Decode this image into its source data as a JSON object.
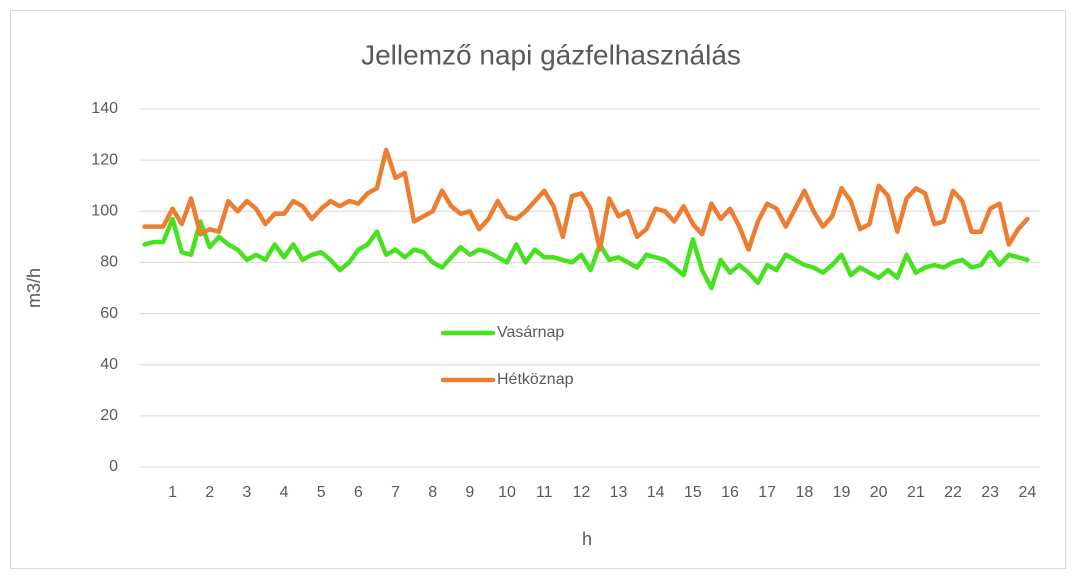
{
  "chart_data": {
    "type": "line",
    "title": "Jellemző napi gázfelhasználás",
    "x_label": "h",
    "y_label": "m3/h",
    "categories": [
      null,
      null,
      null,
      "1",
      null,
      null,
      null,
      "2",
      null,
      null,
      null,
      "3",
      null,
      null,
      null,
      "4",
      null,
      null,
      null,
      "5",
      null,
      null,
      null,
      "6",
      null,
      null,
      null,
      "7",
      null,
      null,
      null,
      "8",
      null,
      null,
      null,
      "9",
      null,
      null,
      null,
      "10",
      null,
      null,
      null,
      "11",
      null,
      null,
      null,
      "12",
      null,
      null,
      null,
      "13",
      null,
      null,
      null,
      "14",
      null,
      null,
      null,
      "15",
      null,
      null,
      null,
      "16",
      null,
      null,
      null,
      "17",
      null,
      null,
      null,
      "18",
      null,
      null,
      null,
      "19",
      null,
      null,
      null,
      "20",
      null,
      null,
      null,
      "21",
      null,
      null,
      null,
      "22",
      null,
      null,
      null,
      "23",
      null,
      null,
      null,
      "24"
    ],
    "series": [
      {
        "name": "Vasárnap",
        "color": "#47e21f",
        "values": [
          87,
          88,
          88,
          97,
          84,
          83,
          96,
          86,
          90,
          87,
          85,
          81,
          83,
          81,
          87,
          82,
          87,
          81,
          83,
          84,
          81,
          77,
          80,
          85,
          87,
          92,
          83,
          85,
          82,
          85,
          84,
          80,
          78,
          82,
          86,
          83,
          85,
          84,
          82,
          80,
          87,
          80,
          85,
          82,
          82,
          81,
          80,
          83,
          77,
          87,
          81,
          82,
          80,
          78,
          83,
          82,
          81,
          78,
          75,
          89,
          77,
          70,
          81,
          76,
          79,
          76,
          72,
          79,
          77,
          83,
          81,
          79,
          78,
          76,
          79,
          83,
          75,
          78,
          76,
          74,
          77,
          74,
          83,
          76,
          78,
          79,
          78,
          80,
          81,
          78,
          79,
          84,
          79,
          83,
          82,
          81
        ]
      },
      {
        "name": "Hétköznap",
        "color": "#ed7d31",
        "values": [
          94,
          94,
          94,
          101,
          95,
          105,
          91,
          93,
          92,
          104,
          100,
          104,
          101,
          95,
          99,
          99,
          104,
          102,
          97,
          101,
          104,
          102,
          104,
          103,
          107,
          109,
          124,
          113,
          115,
          96,
          98,
          100,
          108,
          102,
          99,
          100,
          93,
          97,
          104,
          98,
          97,
          100,
          104,
          108,
          102,
          90,
          106,
          107,
          101,
          85,
          105,
          98,
          100,
          90,
          93,
          101,
          100,
          96,
          102,
          95,
          91,
          103,
          97,
          101,
          94,
          85,
          96,
          103,
          101,
          94,
          101,
          108,
          100,
          94,
          98,
          109,
          104,
          93,
          95,
          110,
          106,
          92,
          105,
          109,
          107,
          95,
          96,
          108,
          104,
          92,
          92,
          101,
          103,
          87,
          93,
          97
        ]
      }
    ],
    "ylim": [
      0,
      140
    ],
    "yticks": [
      0,
      20,
      40,
      60,
      80,
      100,
      120,
      140
    ],
    "grid": true,
    "legend": "center"
  }
}
